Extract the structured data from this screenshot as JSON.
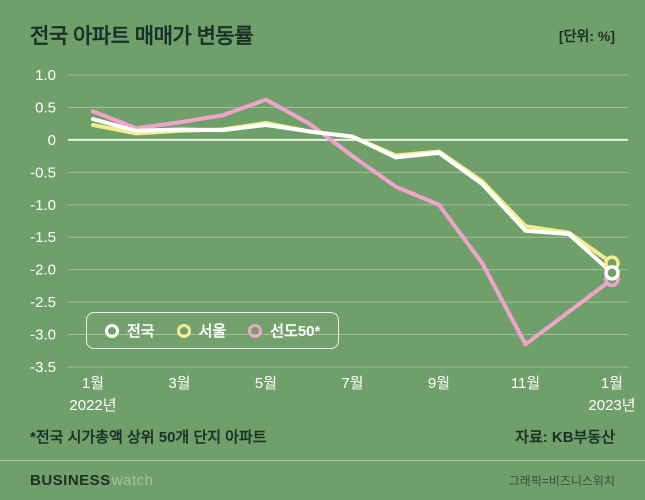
{
  "header": {
    "title": "전국 아파트 매매가 변동률",
    "unit": "[단위: %]"
  },
  "colors": {
    "background": "#70a06a",
    "title_text": "#1b3028",
    "axis_text": "#ffffff",
    "grid": "rgba(255,255,255,0.35)",
    "zero_line": "rgba(255,255,255,0.85)"
  },
  "chart_data": {
    "type": "line",
    "categories": [
      "1월",
      "2월",
      "3월",
      "4월",
      "5월",
      "6월",
      "7월",
      "8월",
      "9월",
      "10월",
      "11월",
      "12월",
      "1월"
    ],
    "series": [
      {
        "name": "전국",
        "color": "#ffffff",
        "values": [
          0.32,
          0.14,
          0.16,
          0.15,
          0.23,
          0.13,
          0.05,
          -0.27,
          -0.2,
          -0.68,
          -1.4,
          -1.45,
          -2.05
        ]
      },
      {
        "name": "서울",
        "color": "#f3ee8d",
        "values": [
          0.23,
          0.1,
          0.14,
          0.16,
          0.26,
          0.13,
          0.05,
          -0.24,
          -0.18,
          -0.64,
          -1.33,
          -1.43,
          -1.9
        ]
      },
      {
        "name": "선도50*",
        "color": "#f2a3cd",
        "values": [
          0.44,
          0.18,
          0.27,
          0.38,
          0.62,
          0.25,
          -0.25,
          -0.72,
          -1.0,
          -1.9,
          -3.15,
          -2.65,
          -2.15
        ]
      }
    ],
    "ylim": [
      -3.5,
      1.0
    ],
    "y_ticks": [
      {
        "label": "1.0",
        "value": 1.0
      },
      {
        "label": "0.5",
        "value": 0.5
      },
      {
        "label": "0",
        "value": 0
      },
      {
        "label": "-0.5",
        "value": -0.5
      },
      {
        "label": "-1.0",
        "value": -1.0
      },
      {
        "label": "-1.5",
        "value": -1.5
      },
      {
        "label": "-2.0",
        "value": -2.0
      },
      {
        "label": "-2.5",
        "value": -2.5
      },
      {
        "label": "-3.0",
        "value": -3.0
      },
      {
        "label": "-3.5",
        "value": -3.5
      }
    ],
    "x_ticks": [
      {
        "label": "1월",
        "index": 0
      },
      {
        "label": "3월",
        "index": 2
      },
      {
        "label": "5월",
        "index": 4
      },
      {
        "label": "7월",
        "index": 6
      },
      {
        "label": "9월",
        "index": 8
      },
      {
        "label": "11월",
        "index": 10
      },
      {
        "label": "1월",
        "index": 12
      }
    ],
    "x_year_labels": [
      {
        "label": "2022년",
        "index": 0
      },
      {
        "label": "2023년",
        "index": 12
      }
    ],
    "grid": true,
    "legend_position": "bottom-left"
  },
  "footnote": {
    "left": "*전국 시가총액 상위 50개 단지 아파트",
    "right": "자료: KB부동산"
  },
  "footer": {
    "brand_primary": "BUSINESS",
    "brand_secondary": "watch",
    "credit": "그래픽=비즈니스워치"
  }
}
